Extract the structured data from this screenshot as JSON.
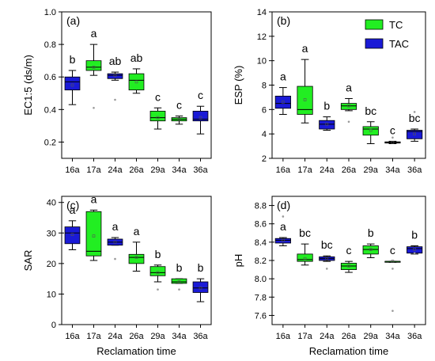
{
  "colors": {
    "TC": "#22ee22",
    "TAC": "#1a1ad6",
    "outlier": "#999999",
    "axis": "#000000"
  },
  "legend": {
    "placement": "top-right of panel (b)",
    "entries": [
      {
        "name": "TC",
        "color": "#22ee22"
      },
      {
        "name": "TAC",
        "color": "#1a1ad6"
      }
    ]
  },
  "chart_data": [
    {
      "type": "box",
      "panel": "(a)",
      "ylabel": "EC1:5 (ds/m)",
      "xlabel": "",
      "categories": [
        "16a",
        "17a",
        "24a",
        "26a",
        "29a",
        "34a",
        "36a"
      ],
      "groups": [
        "TAC",
        "TC",
        "TAC",
        "TC",
        "TC",
        "TC",
        "TAC"
      ],
      "ylim": [
        0.1,
        1.0
      ],
      "yticks": [
        "0.2",
        "0.4",
        "0.6",
        "0.8",
        "1.0"
      ],
      "ytick_values": [
        0.2,
        0.4,
        0.6,
        0.8,
        1.0
      ],
      "boxes": [
        {
          "min": 0.43,
          "q1": 0.52,
          "median": 0.57,
          "q3": 0.6,
          "max": 0.64,
          "mean": 0.55,
          "outliers": []
        },
        {
          "min": 0.61,
          "q1": 0.64,
          "median": 0.66,
          "q3": 0.7,
          "max": 0.8,
          "mean": 0.66,
          "outliers": [
            0.41
          ]
        },
        {
          "min": 0.58,
          "q1": 0.59,
          "median": 0.61,
          "q3": 0.62,
          "max": 0.63,
          "mean": 0.61,
          "outliers": [
            0.46
          ]
        },
        {
          "min": 0.5,
          "q1": 0.52,
          "median": 0.58,
          "q3": 0.62,
          "max": 0.65,
          "mean": 0.57,
          "outliers": []
        },
        {
          "min": 0.28,
          "q1": 0.33,
          "median": 0.35,
          "q3": 0.39,
          "max": 0.41,
          "mean": 0.35,
          "outliers": []
        },
        {
          "min": 0.31,
          "q1": 0.33,
          "median": 0.34,
          "q3": 0.35,
          "max": 0.36,
          "mean": 0.34,
          "outliers": []
        },
        {
          "min": 0.25,
          "q1": 0.33,
          "median": 0.34,
          "q3": 0.39,
          "max": 0.42,
          "mean": 0.35,
          "outliers": []
        }
      ],
      "letters": [
        "b",
        "a",
        "ab",
        "ab",
        "c",
        "c",
        "c"
      ]
    },
    {
      "type": "box",
      "panel": "(b)",
      "ylabel": "ESP (%)",
      "xlabel": "",
      "categories": [
        "16a",
        "17a",
        "24a",
        "26a",
        "29a",
        "34a",
        "36a"
      ],
      "groups": [
        "TAC",
        "TC",
        "TAC",
        "TC",
        "TC",
        "TC",
        "TAC"
      ],
      "ylim": [
        2,
        14
      ],
      "yticks": [
        "2",
        "4",
        "6",
        "8",
        "10",
        "12",
        "14"
      ],
      "ytick_values": [
        2,
        4,
        6,
        8,
        10,
        12,
        14
      ],
      "boxes": [
        {
          "min": 5.6,
          "q1": 6.1,
          "median": 6.5,
          "q3": 7.1,
          "max": 7.8,
          "mean": 6.6,
          "outliers": []
        },
        {
          "min": 4.9,
          "q1": 5.6,
          "median": 6.0,
          "q3": 7.9,
          "max": 10.1,
          "mean": 6.8,
          "outliers": []
        },
        {
          "min": 4.3,
          "q1": 4.4,
          "median": 4.8,
          "q3": 5.1,
          "max": 5.4,
          "mean": 4.8,
          "outliers": []
        },
        {
          "min": 5.9,
          "q1": 6.0,
          "median": 6.3,
          "q3": 6.5,
          "max": 6.9,
          "mean": 6.3,
          "outliers": [
            5.0
          ]
        },
        {
          "min": 3.2,
          "q1": 3.9,
          "median": 4.4,
          "q3": 4.6,
          "max": 5.0,
          "mean": 4.3,
          "outliers": []
        },
        {
          "min": 3.2,
          "q1": 3.25,
          "median": 3.3,
          "q3": 3.35,
          "max": 3.4,
          "mean": 3.3,
          "outliers": [
            3.7
          ]
        },
        {
          "min": 3.4,
          "q1": 3.6,
          "median": 4.2,
          "q3": 4.3,
          "max": 4.4,
          "mean": 4.0,
          "outliers": [
            5.8
          ]
        }
      ],
      "letters": [
        "a",
        "a",
        "b",
        "a",
        "bc",
        "c",
        "bc"
      ]
    },
    {
      "type": "box",
      "panel": "(c)",
      "ylabel": "SAR",
      "xlabel": "Reclamation time",
      "categories": [
        "16a",
        "17a",
        "24a",
        "26a",
        "29a",
        "34a",
        "36a"
      ],
      "groups": [
        "TAC",
        "TC",
        "TAC",
        "TC",
        "TC",
        "TC",
        "TAC"
      ],
      "ylim": [
        0,
        42
      ],
      "yticks": [
        "0",
        "10",
        "20",
        "30",
        "40"
      ],
      "ytick_values": [
        0,
        10,
        20,
        30,
        40
      ],
      "boxes": [
        {
          "min": 24.5,
          "q1": 26.5,
          "median": 30.0,
          "q3": 32.0,
          "max": 34.0,
          "mean": 29.5,
          "outliers": []
        },
        {
          "min": 21.0,
          "q1": 22.5,
          "median": 24.0,
          "q3": 37.0,
          "max": 37.5,
          "mean": 29.0,
          "outliers": []
        },
        {
          "min": 26.0,
          "q1": 26.0,
          "median": 27.0,
          "q3": 28.0,
          "max": 28.5,
          "mean": 27.0,
          "outliers": [
            21.5
          ]
        },
        {
          "min": 17.5,
          "q1": 20.0,
          "median": 22.0,
          "q3": 23.0,
          "max": 27.0,
          "mean": 22.0,
          "outliers": []
        },
        {
          "min": 14.0,
          "q1": 16.0,
          "median": 17.0,
          "q3": 19.0,
          "max": 19.5,
          "mean": 17.0,
          "outliers": [
            11.5
          ]
        },
        {
          "min": 13.5,
          "q1": 13.5,
          "median": 14.0,
          "q3": 15.0,
          "max": 15.0,
          "mean": 14.0,
          "outliers": [
            11.5
          ]
        },
        {
          "min": 7.5,
          "q1": 10.5,
          "median": 12.0,
          "q3": 14.0,
          "max": 15.0,
          "mean": 12.0,
          "outliers": []
        }
      ],
      "letters": [
        "a",
        "a",
        "a",
        "a",
        "b",
        "b",
        "b"
      ]
    },
    {
      "type": "box",
      "panel": "(d)",
      "ylabel": "pH",
      "xlabel": "Reclamation time",
      "categories": [
        "16a",
        "17a",
        "24a",
        "26a",
        "29a",
        "34a",
        "36a"
      ],
      "groups": [
        "TAC",
        "TC",
        "TAC",
        "TC",
        "TC",
        "TC",
        "TAC"
      ],
      "ylim": [
        7.5,
        8.9
      ],
      "yticks": [
        "7.6",
        "7.8",
        "8.0",
        "8.2",
        "8.4",
        "8.6",
        "8.8"
      ],
      "ytick_values": [
        7.6,
        7.8,
        8.0,
        8.2,
        8.4,
        8.6,
        8.8
      ],
      "boxes": [
        {
          "min": 8.36,
          "q1": 8.39,
          "median": 8.42,
          "q3": 8.44,
          "max": 8.45,
          "mean": 8.42,
          "outliers": [
            8.68
          ]
        },
        {
          "min": 8.15,
          "q1": 8.19,
          "median": 8.21,
          "q3": 8.27,
          "max": 8.38,
          "mean": 8.22,
          "outliers": []
        },
        {
          "min": 8.19,
          "q1": 8.2,
          "median": 8.22,
          "q3": 8.24,
          "max": 8.25,
          "mean": 8.22,
          "outliers": [
            8.11
          ]
        },
        {
          "min": 8.07,
          "q1": 8.1,
          "median": 8.14,
          "q3": 8.17,
          "max": 8.19,
          "mean": 8.14,
          "outliers": []
        },
        {
          "min": 8.23,
          "q1": 8.27,
          "median": 8.32,
          "q3": 8.36,
          "max": 8.38,
          "mean": 8.32,
          "outliers": []
        },
        {
          "min": 8.18,
          "q1": 8.18,
          "median": 8.19,
          "q3": 8.19,
          "max": 8.19,
          "mean": 8.19,
          "outliers": [
            8.11,
            7.65
          ]
        },
        {
          "min": 8.27,
          "q1": 8.28,
          "median": 8.33,
          "q3": 8.35,
          "max": 8.36,
          "mean": 8.32,
          "outliers": [
            8.28
          ]
        }
      ],
      "letters": [
        "a",
        "bc",
        "bc",
        "c",
        "b",
        "c",
        "b"
      ]
    }
  ]
}
